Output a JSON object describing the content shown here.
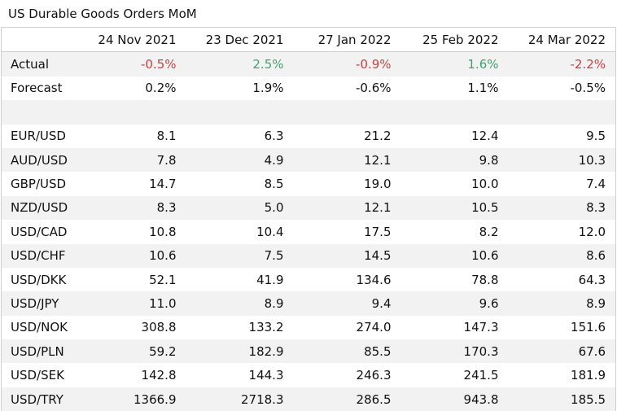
{
  "title": "US Durable Goods Orders MoM",
  "dates": [
    "24 Nov 2021",
    "23 Dec 2021",
    "27 Jan 2022",
    "25 Feb 2022",
    "24 Mar 2022"
  ],
  "actual": {
    "label": "Actual",
    "values": [
      "-0.5%",
      "2.5%",
      "-0.9%",
      "1.6%",
      "-2.2%"
    ],
    "signs": [
      "neg",
      "pos",
      "neg",
      "pos",
      "neg"
    ],
    "colors": {
      "negative": "#d23f3f",
      "positive": "#3aa76d"
    }
  },
  "forecast": {
    "label": "Forecast",
    "values": [
      "0.2%",
      "1.9%",
      "-0.6%",
      "1.1%",
      "-0.5%"
    ]
  },
  "pairs": [
    {
      "label": "EUR/USD",
      "values": [
        "8.1",
        "6.3",
        "21.2",
        "12.4",
        "9.5"
      ]
    },
    {
      "label": "AUD/USD",
      "values": [
        "7.8",
        "4.9",
        "12.1",
        "9.8",
        "10.3"
      ]
    },
    {
      "label": "GBP/USD",
      "values": [
        "14.7",
        "8.5",
        "19.0",
        "10.0",
        "7.4"
      ]
    },
    {
      "label": "NZD/USD",
      "values": [
        "8.3",
        "5.0",
        "12.1",
        "10.5",
        "8.3"
      ]
    },
    {
      "label": "USD/CAD",
      "values": [
        "10.8",
        "10.4",
        "17.5",
        "8.2",
        "12.0"
      ]
    },
    {
      "label": "USD/CHF",
      "values": [
        "10.6",
        "7.5",
        "14.5",
        "10.6",
        "8.6"
      ]
    },
    {
      "label": "USD/DKK",
      "values": [
        "52.1",
        "41.9",
        "134.6",
        "78.8",
        "64.3"
      ]
    },
    {
      "label": "USD/JPY",
      "values": [
        "11.0",
        "8.9",
        "9.4",
        "9.6",
        "8.9"
      ]
    },
    {
      "label": "USD/NOK",
      "values": [
        "308.8",
        "133.2",
        "274.0",
        "147.3",
        "151.6"
      ]
    },
    {
      "label": "USD/PLN",
      "values": [
        "59.2",
        "182.9",
        "85.5",
        "170.3",
        "67.6"
      ]
    },
    {
      "label": "USD/SEK",
      "values": [
        "142.8",
        "144.3",
        "246.3",
        "241.5",
        "181.9"
      ]
    },
    {
      "label": "USD/TRY",
      "values": [
        "1366.9",
        "2718.3",
        "286.5",
        "943.8",
        "185.5"
      ]
    }
  ]
}
